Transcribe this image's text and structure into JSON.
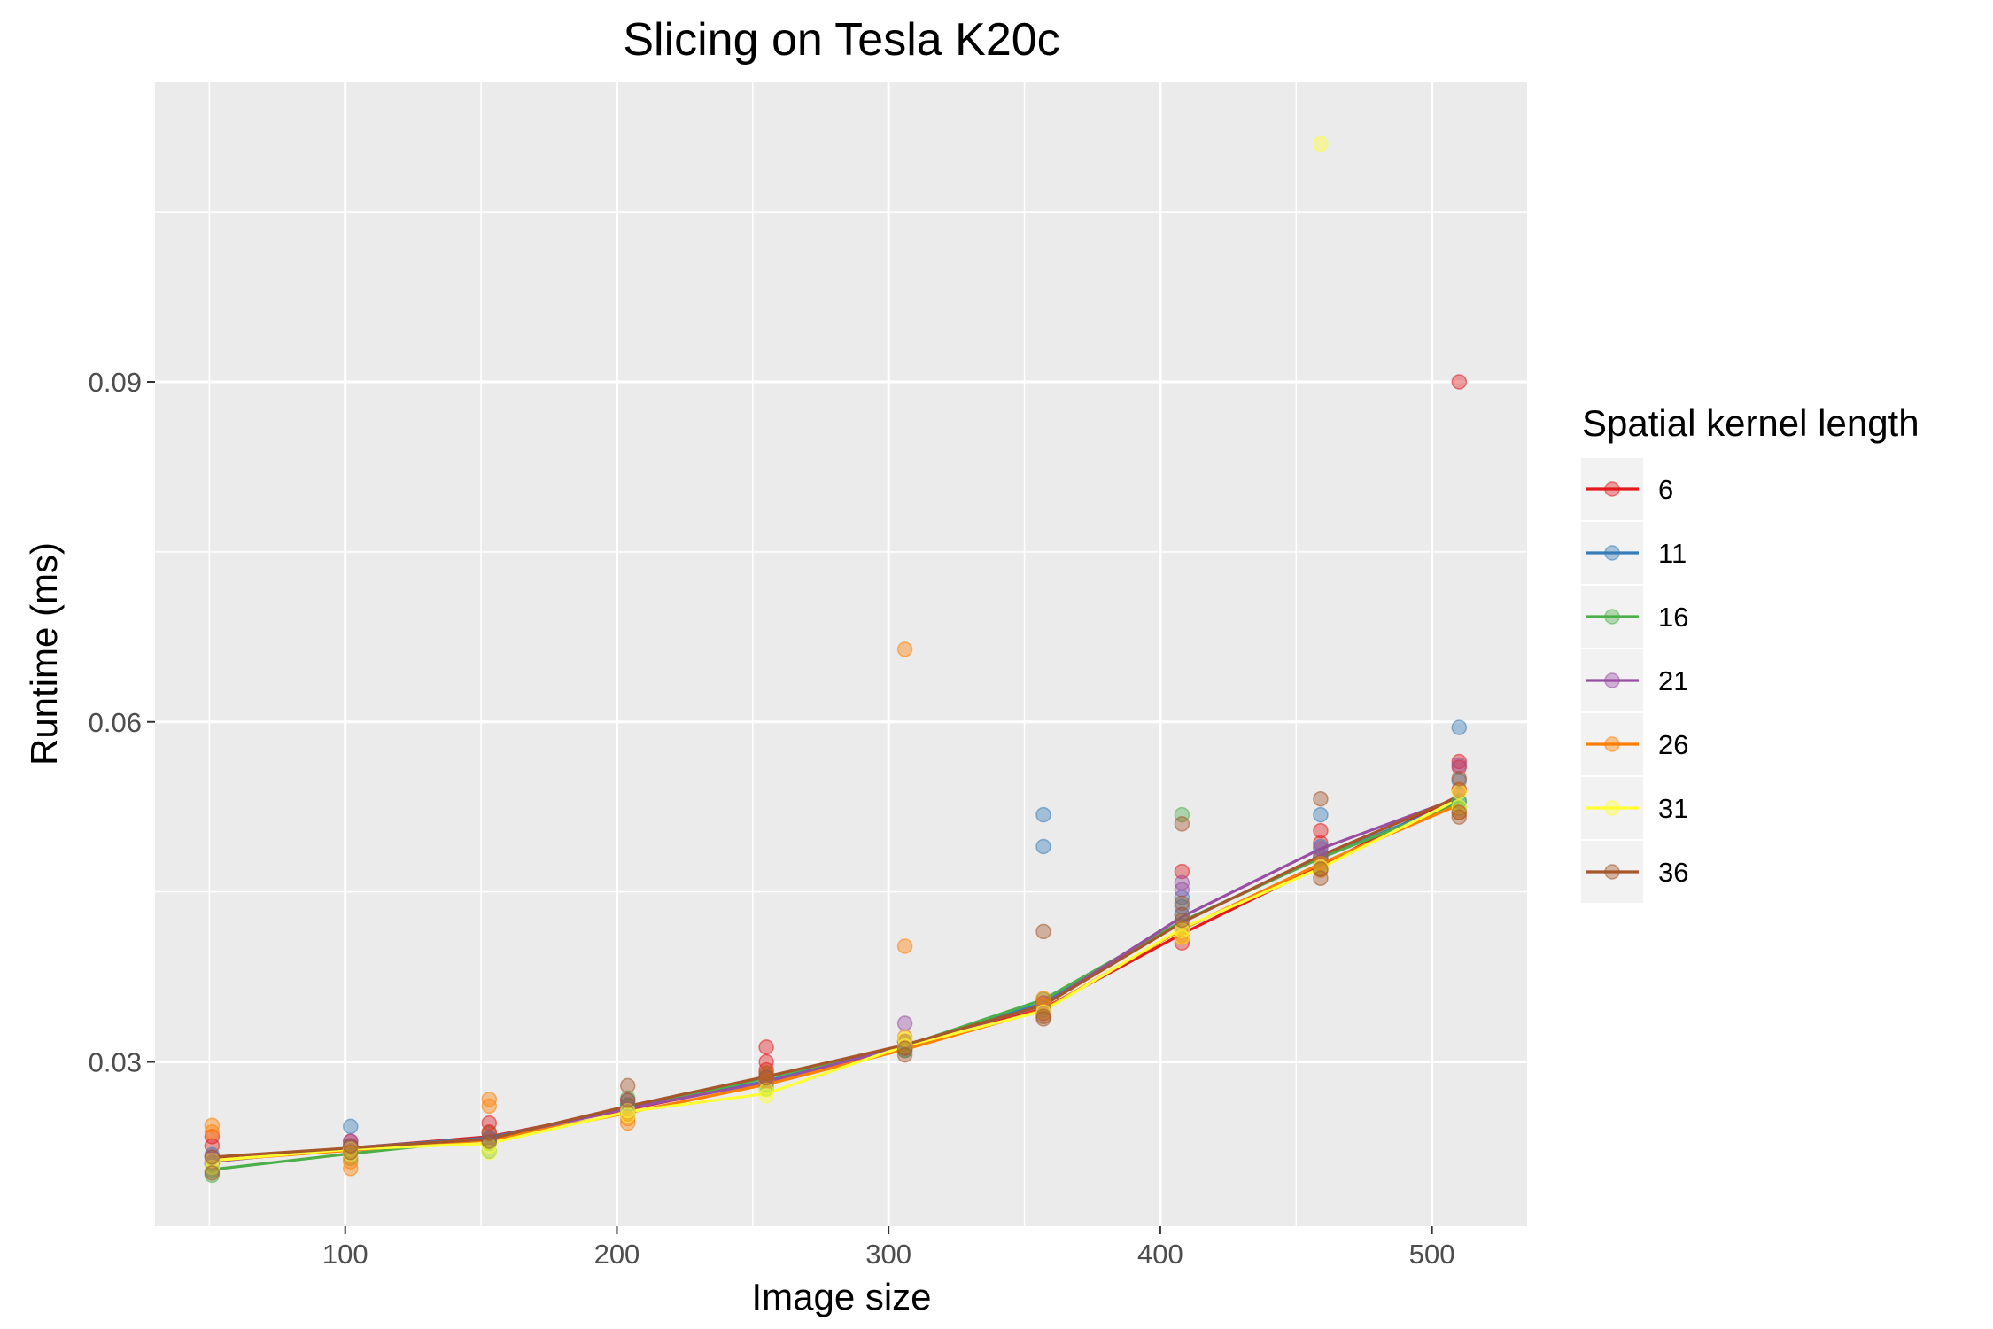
{
  "chart_data": {
    "type": "scatter",
    "title": "Slicing on Tesla K20c",
    "xlabel": "Image size",
    "ylabel": "Runtime (ms)",
    "xlim": [
      30,
      535
    ],
    "ylim": [
      0.0155,
      0.1165
    ],
    "x_ticks": [
      100,
      200,
      300,
      400,
      500
    ],
    "x_tick_labels": [
      "100",
      "200",
      "300",
      "400",
      "500"
    ],
    "y_ticks": [
      0.03,
      0.06,
      0.09
    ],
    "y_tick_labels": [
      "0.03",
      "0.06",
      "0.09"
    ],
    "grid": true,
    "legend": {
      "title": "Spatial kernel length",
      "position": "right"
    },
    "x": [
      51,
      102,
      153,
      204,
      255,
      306,
      357,
      408,
      459,
      510
    ],
    "series": [
      {
        "name": "6",
        "color": "#e41a1c",
        "line": [
          0.0214,
          0.0224,
          0.0234,
          0.0258,
          0.0283,
          0.0313,
          0.0347,
          0.0413,
          0.0473,
          0.0535
        ],
        "points": [
          [
            51,
            0.0234
          ],
          [
            51,
            0.0226
          ],
          [
            102,
            0.0226
          ],
          [
            102,
            0.023
          ],
          [
            153,
            0.0246
          ],
          [
            153,
            0.0238
          ],
          [
            204,
            0.0262
          ],
          [
            204,
            0.0254
          ],
          [
            255,
            0.0313
          ],
          [
            255,
            0.03
          ],
          [
            255,
            0.0293
          ],
          [
            306,
            0.0318
          ],
          [
            306,
            0.0313
          ],
          [
            357,
            0.0352
          ],
          [
            357,
            0.0343
          ],
          [
            408,
            0.0468
          ],
          [
            408,
            0.0405
          ],
          [
            408,
            0.041
          ],
          [
            459,
            0.0504
          ],
          [
            459,
            0.0493
          ],
          [
            459,
            0.048
          ],
          [
            510,
            0.09
          ],
          [
            510,
            0.0565
          ],
          [
            510,
            0.056
          ],
          [
            510,
            0.054
          ]
        ]
      },
      {
        "name": "11",
        "color": "#377eb8",
        "line": [
          0.0212,
          0.0224,
          0.0233,
          0.0259,
          0.0283,
          0.0314,
          0.0352,
          0.0424,
          0.048,
          0.053
        ],
        "points": [
          [
            51,
            0.0218
          ],
          [
            51,
            0.021
          ],
          [
            102,
            0.0243
          ],
          [
            102,
            0.0226
          ],
          [
            153,
            0.0233
          ],
          [
            153,
            0.0229
          ],
          [
            204,
            0.0262
          ],
          [
            204,
            0.0256
          ],
          [
            255,
            0.0287
          ],
          [
            255,
            0.028
          ],
          [
            306,
            0.0317
          ],
          [
            306,
            0.031
          ],
          [
            357,
            0.0518
          ],
          [
            357,
            0.049
          ],
          [
            357,
            0.0349
          ],
          [
            408,
            0.0445
          ],
          [
            408,
            0.0437
          ],
          [
            408,
            0.042
          ],
          [
            459,
            0.0518
          ],
          [
            459,
            0.049
          ],
          [
            510,
            0.0595
          ],
          [
            510,
            0.0548
          ],
          [
            510,
            0.053
          ]
        ]
      },
      {
        "name": "16",
        "color": "#4daf4a",
        "line": [
          0.0205,
          0.0219,
          0.0232,
          0.0259,
          0.0286,
          0.0314,
          0.0355,
          0.0424,
          0.048,
          0.0528
        ],
        "points": [
          [
            51,
            0.0204
          ],
          [
            51,
            0.021
          ],
          [
            51,
            0.02
          ],
          [
            102,
            0.022
          ],
          [
            102,
            0.0215
          ],
          [
            153,
            0.0221
          ],
          [
            153,
            0.0228
          ],
          [
            204,
            0.0268
          ],
          [
            204,
            0.0262
          ],
          [
            255,
            0.0283
          ],
          [
            255,
            0.0276
          ],
          [
            306,
            0.0317
          ],
          [
            306,
            0.031
          ],
          [
            357,
            0.0355
          ],
          [
            357,
            0.0348
          ],
          [
            408,
            0.0518
          ],
          [
            408,
            0.043
          ],
          [
            459,
            0.048
          ],
          [
            459,
            0.047
          ],
          [
            510,
            0.053
          ],
          [
            510,
            0.0524
          ]
        ]
      },
      {
        "name": "21",
        "color": "#984ea3",
        "line": [
          0.0212,
          0.0224,
          0.0232,
          0.0259,
          0.0282,
          0.0314,
          0.035,
          0.0428,
          0.0488,
          0.0533
        ],
        "points": [
          [
            51,
            0.0216
          ],
          [
            51,
            0.0212
          ],
          [
            102,
            0.023
          ],
          [
            102,
            0.0224
          ],
          [
            153,
            0.0232
          ],
          [
            204,
            0.0266
          ],
          [
            204,
            0.0258
          ],
          [
            255,
            0.0287
          ],
          [
            255,
            0.0283
          ],
          [
            306,
            0.0334
          ],
          [
            306,
            0.0318
          ],
          [
            357,
            0.0352
          ],
          [
            357,
            0.0345
          ],
          [
            408,
            0.0458
          ],
          [
            408,
            0.0452
          ],
          [
            408,
            0.043
          ],
          [
            459,
            0.0488
          ],
          [
            459,
            0.0482
          ],
          [
            510,
            0.0562
          ],
          [
            510,
            0.054
          ]
        ]
      },
      {
        "name": "26",
        "color": "#ff7f00",
        "line": [
          0.0213,
          0.0222,
          0.0231,
          0.0255,
          0.028,
          0.0311,
          0.0346,
          0.0417,
          0.0475,
          0.0527
        ],
        "points": [
          [
            51,
            0.0244
          ],
          [
            51,
            0.0238
          ],
          [
            102,
            0.0206
          ],
          [
            102,
            0.0212
          ],
          [
            153,
            0.0267
          ],
          [
            153,
            0.0261
          ],
          [
            204,
            0.0246
          ],
          [
            204,
            0.025
          ],
          [
            255,
            0.029
          ],
          [
            255,
            0.0283
          ],
          [
            306,
            0.0664
          ],
          [
            306,
            0.0402
          ],
          [
            306,
            0.0322
          ],
          [
            357,
            0.0356
          ],
          [
            357,
            0.035
          ],
          [
            408,
            0.0418
          ],
          [
            408,
            0.041
          ],
          [
            459,
            0.0475
          ],
          [
            459,
            0.0469
          ],
          [
            510,
            0.054
          ],
          [
            510,
            0.052
          ]
        ]
      },
      {
        "name": "31",
        "color": "#ffff33",
        "line": [
          0.0213,
          0.0223,
          0.0228,
          0.0256,
          0.0272,
          0.0314,
          0.0345,
          0.0418,
          0.0471,
          0.0532
        ],
        "points": [
          [
            51,
            0.0213
          ],
          [
            51,
            0.0207
          ],
          [
            102,
            0.0223
          ],
          [
            102,
            0.0219
          ],
          [
            153,
            0.022
          ],
          [
            153,
            0.0226
          ],
          [
            204,
            0.0257
          ],
          [
            204,
            0.0253
          ],
          [
            255,
            0.027
          ],
          [
            255,
            0.0275
          ],
          [
            306,
            0.0314
          ],
          [
            306,
            0.032
          ],
          [
            357,
            0.0344
          ],
          [
            408,
            0.041
          ],
          [
            408,
            0.0416
          ],
          [
            459,
            0.111
          ],
          [
            459,
            0.0472
          ],
          [
            510,
            0.0538
          ],
          [
            510,
            0.0525
          ]
        ]
      },
      {
        "name": "36",
        "color": "#a65628",
        "line": [
          0.0216,
          0.0224,
          0.0232,
          0.0261,
          0.0287,
          0.0315,
          0.035,
          0.0423,
          0.0482,
          0.0534
        ],
        "points": [
          [
            51,
            0.0216
          ],
          [
            51,
            0.0202
          ],
          [
            102,
            0.0226
          ],
          [
            102,
            0.022
          ],
          [
            153,
            0.0237
          ],
          [
            153,
            0.023
          ],
          [
            204,
            0.0279
          ],
          [
            204,
            0.0266
          ],
          [
            255,
            0.029
          ],
          [
            255,
            0.0286
          ],
          [
            306,
            0.0306
          ],
          [
            306,
            0.0312
          ],
          [
            357,
            0.0415
          ],
          [
            357,
            0.034
          ],
          [
            357,
            0.0338
          ],
          [
            408,
            0.051
          ],
          [
            408,
            0.044
          ],
          [
            408,
            0.0425
          ],
          [
            459,
            0.0532
          ],
          [
            459,
            0.047
          ],
          [
            459,
            0.0462
          ],
          [
            510,
            0.052
          ],
          [
            510,
            0.0516
          ],
          [
            510,
            0.055
          ]
        ]
      }
    ]
  }
}
